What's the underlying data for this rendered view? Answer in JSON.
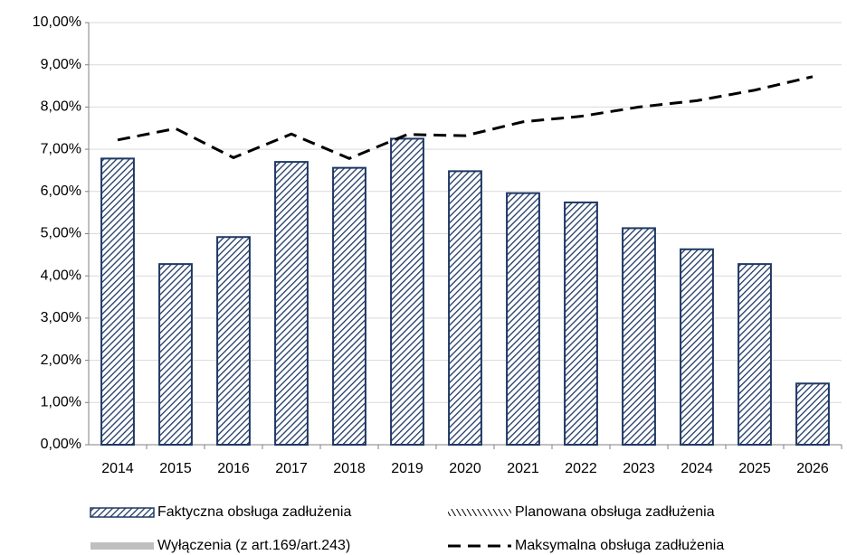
{
  "chart_data": {
    "type": "bar",
    "categories": [
      "2014",
      "2015",
      "2016",
      "2017",
      "2018",
      "2019",
      "2020",
      "2021",
      "2022",
      "2023",
      "2024",
      "2025",
      "2026"
    ],
    "series": [
      {
        "name": "Faktyczna obsługa zadłużenia",
        "type": "bar",
        "pattern": "hatch",
        "color": "#1f3864",
        "values": [
          6.78,
          4.28,
          4.92,
          6.7,
          6.56,
          7.25,
          6.48,
          5.96,
          5.74,
          5.13,
          4.63,
          4.28,
          1.45
        ]
      },
      {
        "name": "Planowana obsługa zadłużenia",
        "type": "line",
        "pattern": "hatch-line",
        "color": "#000000",
        "values": [
          null,
          null,
          null,
          null,
          null,
          null,
          null,
          null,
          null,
          null,
          null,
          null,
          null
        ]
      },
      {
        "name": "Wyłączenia (z art.169/art.243)",
        "type": "bar",
        "pattern": "solid",
        "color": "#bfbfbf",
        "values": [
          null,
          null,
          null,
          null,
          null,
          null,
          null,
          null,
          null,
          null,
          null,
          null,
          null
        ]
      },
      {
        "name": "Maksymalna obsługa zadłużenia",
        "type": "line",
        "pattern": "dash",
        "color": "#000000",
        "values": [
          7.22,
          7.49,
          6.8,
          7.36,
          6.78,
          7.35,
          7.32,
          7.65,
          7.78,
          8.0,
          8.15,
          8.4,
          8.72
        ]
      }
    ],
    "ylim": [
      0,
      10
    ],
    "yticks": [
      {
        "value": 0,
        "label": "0,00%"
      },
      {
        "value": 1,
        "label": "1,00%"
      },
      {
        "value": 2,
        "label": "2,00%"
      },
      {
        "value": 3,
        "label": "3,00%"
      },
      {
        "value": 4,
        "label": "4,00%"
      },
      {
        "value": 5,
        "label": "5,00%"
      },
      {
        "value": 6,
        "label": "6,00%"
      },
      {
        "value": 7,
        "label": "7,00%"
      },
      {
        "value": 8,
        "label": "8,00%"
      },
      {
        "value": 9,
        "label": "9,00%"
      },
      {
        "value": 10,
        "label": "10,00%"
      }
    ],
    "grid": true
  }
}
